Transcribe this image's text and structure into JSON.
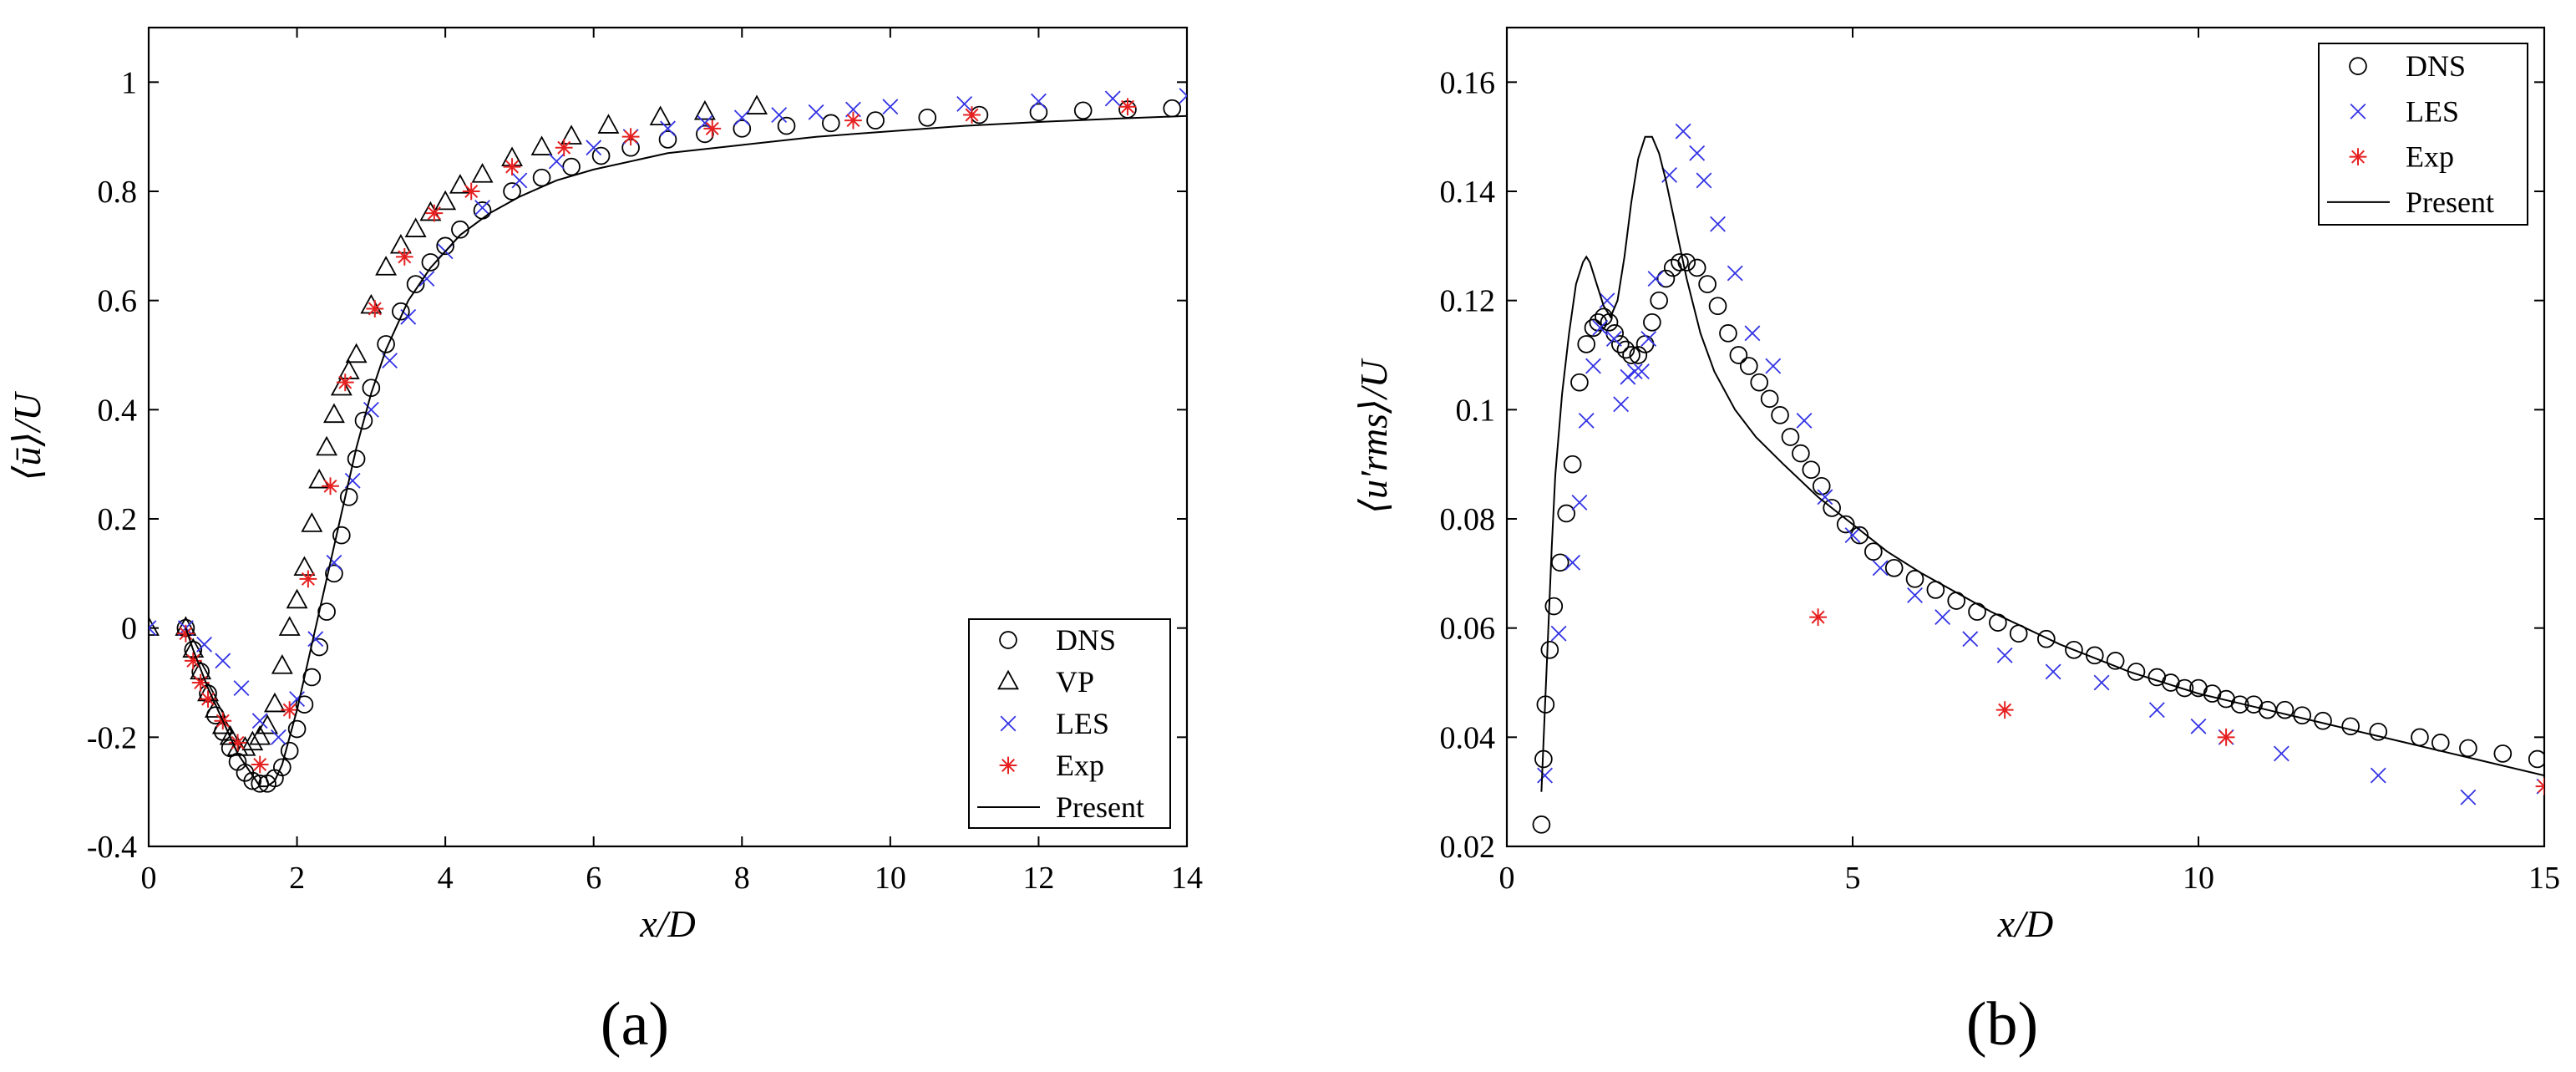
{
  "chart_data": [
    {
      "type": "scatter",
      "panel_label": "(a)",
      "xlabel": "x/D",
      "ylabel": "⟨ū⟩/U",
      "xlim": [
        0,
        14
      ],
      "ylim": [
        -0.4,
        1.1
      ],
      "xticks": [
        0,
        2,
        4,
        6,
        8,
        10,
        12,
        14
      ],
      "xtick_labels": [
        "0",
        "2",
        "4",
        "6",
        "8",
        "10",
        "12",
        "14"
      ],
      "yticks": [
        -0.4,
        -0.2,
        0,
        0.2,
        0.4,
        0.6,
        0.8,
        1
      ],
      "ytick_labels": [
        "-0.4",
        "-0.2",
        "0",
        "0.2",
        "0.4",
        "0.6",
        "0.8",
        "1"
      ],
      "legend_position": "bottom-right",
      "series": [
        {
          "name": "DNS",
          "marker": "circle",
          "color": "#000000",
          "x": [
            0.5,
            0.6,
            0.7,
            0.8,
            0.9,
            1.0,
            1.1,
            1.2,
            1.3,
            1.4,
            1.5,
            1.6,
            1.7,
            1.8,
            1.9,
            2.0,
            2.1,
            2.2,
            2.3,
            2.4,
            2.5,
            2.6,
            2.7,
            2.8,
            2.9,
            3.0,
            3.2,
            3.4,
            3.6,
            3.8,
            4.0,
            4.2,
            4.5,
            4.9,
            5.3,
            5.7,
            6.1,
            6.5,
            7.0,
            7.5,
            8.0,
            8.6,
            9.2,
            9.8,
            10.5,
            11.2,
            12.0,
            12.6,
            13.2,
            13.8
          ],
          "y": [
            0.0,
            -0.04,
            -0.08,
            -0.12,
            -0.16,
            -0.19,
            -0.22,
            -0.245,
            -0.265,
            -0.28,
            -0.285,
            -0.285,
            -0.275,
            -0.255,
            -0.225,
            -0.185,
            -0.14,
            -0.09,
            -0.035,
            0.03,
            0.1,
            0.17,
            0.24,
            0.31,
            0.38,
            0.44,
            0.52,
            0.58,
            0.63,
            0.67,
            0.7,
            0.73,
            0.765,
            0.8,
            0.825,
            0.845,
            0.865,
            0.88,
            0.895,
            0.905,
            0.915,
            0.92,
            0.925,
            0.93,
            0.935,
            0.94,
            0.945,
            0.948,
            0.95,
            0.952
          ]
        },
        {
          "name": "VP",
          "marker": "triangle",
          "color": "#000000",
          "x": [
            0.0,
            0.5,
            0.6,
            0.7,
            0.8,
            0.9,
            1.0,
            1.1,
            1.2,
            1.3,
            1.4,
            1.5,
            1.6,
            1.7,
            1.8,
            1.9,
            2.0,
            2.1,
            2.2,
            2.3,
            2.4,
            2.5,
            2.6,
            2.7,
            2.8,
            3.0,
            3.2,
            3.4,
            3.6,
            3.8,
            4.0,
            4.2,
            4.5,
            4.9,
            5.3,
            5.7,
            6.2,
            6.9,
            7.5,
            8.2
          ],
          "y": [
            0.0,
            0.0,
            -0.04,
            -0.08,
            -0.12,
            -0.15,
            -0.18,
            -0.2,
            -0.22,
            -0.22,
            -0.21,
            -0.2,
            -0.18,
            -0.14,
            -0.07,
            0.0,
            0.05,
            0.11,
            0.19,
            0.27,
            0.33,
            0.39,
            0.44,
            0.47,
            0.5,
            0.59,
            0.66,
            0.7,
            0.73,
            0.76,
            0.78,
            0.81,
            0.83,
            0.86,
            0.88,
            0.9,
            0.92,
            0.935,
            0.945,
            0.955
          ]
        },
        {
          "name": "LES",
          "marker": "x",
          "color": "#3333e6",
          "x": [
            0.0,
            0.5,
            0.75,
            1.0,
            1.25,
            1.5,
            1.75,
            2.0,
            2.25,
            2.5,
            2.75,
            3.0,
            3.25,
            3.5,
            3.75,
            4.0,
            4.5,
            5.0,
            5.5,
            6.0,
            6.5,
            7.0,
            7.5,
            8.0,
            8.5,
            9.0,
            9.5,
            10.0,
            11.0,
            12.0,
            13.0,
            14.0
          ],
          "y": [
            0.0,
            0.0,
            -0.03,
            -0.06,
            -0.11,
            -0.17,
            -0.2,
            -0.13,
            -0.02,
            0.12,
            0.27,
            0.4,
            0.49,
            0.57,
            0.64,
            0.69,
            0.77,
            0.82,
            0.855,
            0.88,
            0.9,
            0.915,
            0.925,
            0.935,
            0.94,
            0.945,
            0.95,
            0.955,
            0.96,
            0.965,
            0.97,
            0.975
          ]
        },
        {
          "name": "Exp",
          "marker": "asterisk",
          "color": "#e62020",
          "x": [
            0.5,
            0.6,
            0.7,
            0.8,
            1.0,
            1.2,
            1.5,
            1.9,
            2.15,
            2.45,
            2.65,
            3.05,
            3.45,
            3.85,
            4.35,
            4.9,
            5.6,
            6.5,
            7.6,
            9.5,
            11.1,
            13.2
          ],
          "y": [
            -0.01,
            -0.06,
            -0.1,
            -0.13,
            -0.17,
            -0.21,
            -0.25,
            -0.15,
            0.09,
            0.26,
            0.45,
            0.585,
            0.68,
            0.76,
            0.8,
            0.845,
            0.88,
            0.9,
            0.915,
            0.93,
            0.94,
            0.955
          ]
        },
        {
          "name": "Present",
          "marker": "line",
          "color": "#000000",
          "x": [
            0.5,
            0.6,
            0.8,
            1.0,
            1.2,
            1.4,
            1.5,
            1.6,
            1.7,
            1.8,
            1.9,
            2.0,
            2.2,
            2.4,
            2.6,
            2.8,
            3.0,
            3.2,
            3.5,
            3.8,
            4.2,
            4.6,
            5.0,
            5.5,
            6.0,
            7.0,
            8.0,
            9.0,
            10.0,
            11.0,
            12.0,
            13.0,
            14.0
          ],
          "y": [
            0.0,
            -0.04,
            -0.11,
            -0.17,
            -0.23,
            -0.27,
            -0.29,
            -0.29,
            -0.28,
            -0.25,
            -0.2,
            -0.15,
            -0.03,
            0.09,
            0.21,
            0.33,
            0.43,
            0.51,
            0.6,
            0.66,
            0.72,
            0.76,
            0.79,
            0.82,
            0.84,
            0.87,
            0.885,
            0.9,
            0.91,
            0.92,
            0.927,
            0.933,
            0.938
          ]
        }
      ]
    },
    {
      "type": "scatter",
      "panel_label": "(b)",
      "xlabel": "x/D",
      "ylabel": "⟨u′rms⟩/U",
      "xlim": [
        0,
        15
      ],
      "ylim": [
        0.02,
        0.17
      ],
      "xticks": [
        0,
        5,
        10,
        15
      ],
      "xtick_labels": [
        "0",
        "5",
        "10",
        "15"
      ],
      "yticks": [
        0.02,
        0.04,
        0.06,
        0.08,
        0.1,
        0.12,
        0.14,
        0.16
      ],
      "ytick_labels": [
        "0.02",
        "0.04",
        "0.06",
        "0.08",
        "0.1",
        "0.12",
        "0.14",
        "0.16"
      ],
      "legend_position": "top-right",
      "series": [
        {
          "name": "DNS",
          "marker": "circle",
          "color": "#000000",
          "x": [
            0.5,
            0.53,
            0.56,
            0.62,
            0.68,
            0.77,
            0.86,
            0.95,
            1.05,
            1.15,
            1.25,
            1.32,
            1.4,
            1.48,
            1.56,
            1.64,
            1.72,
            1.8,
            1.9,
            2.0,
            2.1,
            2.2,
            2.3,
            2.4,
            2.5,
            2.6,
            2.75,
            2.9,
            3.05,
            3.2,
            3.35,
            3.5,
            3.65,
            3.8,
            3.95,
            4.1,
            4.25,
            4.4,
            4.55,
            4.7,
            4.9,
            5.1,
            5.3,
            5.6,
            5.9,
            6.2,
            6.5,
            6.8,
            7.1,
            7.4,
            7.8,
            8.2,
            8.5,
            8.8,
            9.1,
            9.4,
            9.6,
            9.8,
            10.0,
            10.2,
            10.4,
            10.6,
            10.8,
            11.0,
            11.25,
            11.5,
            11.8,
            12.2,
            12.6,
            13.2,
            13.5,
            13.9,
            14.4,
            14.9
          ],
          "y": [
            0.024,
            0.036,
            0.046,
            0.056,
            0.064,
            0.072,
            0.081,
            0.09,
            0.105,
            0.112,
            0.115,
            0.116,
            0.117,
            0.116,
            0.114,
            0.112,
            0.111,
            0.11,
            0.11,
            0.112,
            0.116,
            0.12,
            0.124,
            0.126,
            0.127,
            0.127,
            0.126,
            0.123,
            0.119,
            0.114,
            0.11,
            0.108,
            0.105,
            0.102,
            0.099,
            0.095,
            0.092,
            0.089,
            0.086,
            0.082,
            0.079,
            0.077,
            0.074,
            0.071,
            0.069,
            0.067,
            0.065,
            0.063,
            0.061,
            0.059,
            0.058,
            0.056,
            0.055,
            0.054,
            0.052,
            0.051,
            0.05,
            0.049,
            0.049,
            0.048,
            0.047,
            0.046,
            0.046,
            0.045,
            0.045,
            0.044,
            0.043,
            0.042,
            0.041,
            0.04,
            0.039,
            0.038,
            0.037,
            0.036
          ]
        },
        {
          "name": "LES",
          "marker": "x",
          "color": "#3333e6",
          "x": [
            0.55,
            0.75,
            0.95,
            1.05,
            1.15,
            1.25,
            1.35,
            1.45,
            1.55,
            1.65,
            1.75,
            1.85,
            1.95,
            2.05,
            2.15,
            2.35,
            2.55,
            2.75,
            2.85,
            3.05,
            3.3,
            3.55,
            3.85,
            4.3,
            4.6,
            5.0,
            5.4,
            5.9,
            6.3,
            6.7,
            7.2,
            7.9,
            8.6,
            9.4,
            10.0,
            10.4,
            11.2,
            12.6,
            13.9,
            15.0
          ],
          "y": [
            0.033,
            0.059,
            0.072,
            0.083,
            0.098,
            0.108,
            0.115,
            0.12,
            0.113,
            0.101,
            0.106,
            0.107,
            0.107,
            0.113,
            0.124,
            0.143,
            0.151,
            0.147,
            0.142,
            0.134,
            0.125,
            0.114,
            0.108,
            0.098,
            0.084,
            0.077,
            0.071,
            0.066,
            0.062,
            0.058,
            0.055,
            0.052,
            0.05,
            0.045,
            0.042,
            0.04,
            0.037,
            0.033,
            0.029,
            0.031
          ]
        },
        {
          "name": "Exp",
          "marker": "asterisk",
          "color": "#e62020",
          "x": [
            4.5,
            7.2,
            10.4,
            15.0
          ],
          "y": [
            0.062,
            0.045,
            0.04,
            0.031
          ]
        },
        {
          "name": "Present",
          "marker": "line",
          "color": "#000000",
          "x": [
            0.5,
            0.55,
            0.6,
            0.65,
            0.7,
            0.8,
            0.9,
            1.0,
            1.1,
            1.15,
            1.2,
            1.3,
            1.4,
            1.5,
            1.6,
            1.7,
            1.8,
            1.9,
            2.0,
            2.1,
            2.2,
            2.3,
            2.4,
            2.5,
            2.6,
            2.8,
            3.0,
            3.3,
            3.6,
            4.0,
            4.5,
            5.0,
            5.5,
            6.0,
            7.0,
            8.0,
            9.0,
            10.0,
            11.0,
            12.0,
            13.0,
            14.0,
            15.0
          ],
          "y": [
            0.03,
            0.045,
            0.06,
            0.075,
            0.088,
            0.103,
            0.114,
            0.123,
            0.127,
            0.128,
            0.127,
            0.123,
            0.119,
            0.117,
            0.12,
            0.128,
            0.138,
            0.146,
            0.15,
            0.15,
            0.147,
            0.142,
            0.136,
            0.13,
            0.124,
            0.114,
            0.107,
            0.1,
            0.095,
            0.09,
            0.084,
            0.079,
            0.074,
            0.07,
            0.063,
            0.057,
            0.052,
            0.048,
            0.045,
            0.042,
            0.039,
            0.036,
            0.033
          ]
        }
      ]
    }
  ]
}
